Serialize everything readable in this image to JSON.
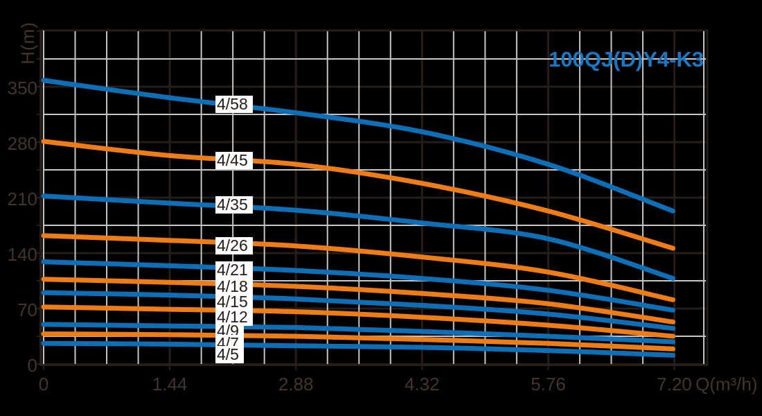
{
  "title": "100QJ(D)Y4-K3",
  "axes": {
    "y_label": "H(m)",
    "x_label": "Q(m³/h)",
    "y_ticks": [
      350,
      280,
      210,
      140,
      70,
      0
    ],
    "x_ticks": [
      "0",
      "1.44",
      "2.88",
      "4.32",
      "5.76",
      "7.20"
    ]
  },
  "colors": {
    "background": "#000000",
    "blue": "#0e6fb7",
    "orange": "#ee7d17",
    "title_blue": "#1b77c0",
    "grid_minor": "#c4c6c5",
    "grid_major": "#281e19",
    "axis_ink": "#43352c",
    "chip_bg": "#ffffff",
    "chip_text": "#241a16"
  },
  "chart_data": {
    "type": "line",
    "title": "100QJ(D)Y4-K3",
    "xlabel": "Q(m³/h)",
    "ylabel": "H(m)",
    "x": [
      0,
      1.44,
      2.88,
      4.32,
      5.76,
      7.2
    ],
    "xlim": [
      0,
      7.56
    ],
    "ylim": [
      0,
      420
    ],
    "grid": {
      "x_major_step": 1.44,
      "x_minor_step": 0.36,
      "y_major_step": 70,
      "y_minor_step": 35,
      "grid_on": true
    },
    "legend_position": "inline-labels-on-curves",
    "series": [
      {
        "name": "4/58",
        "color": "blue",
        "values": [
          358,
          336,
          317,
          293,
          252,
          193
        ]
      },
      {
        "name": "4/45",
        "color": "orange",
        "values": [
          281,
          263,
          252,
          228,
          193,
          146
        ]
      },
      {
        "name": "4/35",
        "color": "blue",
        "values": [
          212,
          203,
          194,
          178,
          158,
          108
        ]
      },
      {
        "name": "4/26",
        "color": "orange",
        "values": [
          162,
          156,
          149,
          135,
          116,
          81
        ]
      },
      {
        "name": "4/21",
        "color": "blue",
        "values": [
          129,
          124,
          118,
          108,
          93,
          68
        ]
      },
      {
        "name": "4/18",
        "color": "orange",
        "values": [
          107,
          103,
          98,
          89,
          76,
          53
        ]
      },
      {
        "name": "4/15",
        "color": "blue",
        "values": [
          90,
          87,
          82,
          74,
          63,
          45
        ]
      },
      {
        "name": "4/12",
        "color": "orange",
        "values": [
          72,
          69,
          66,
          59,
          49,
          35
        ]
      },
      {
        "name": "4/9",
        "color": "blue",
        "values": [
          50,
          48,
          46,
          41,
          35,
          28
        ]
      },
      {
        "name": "4/7",
        "color": "orange",
        "values": [
          38,
          37,
          35,
          31,
          26,
          19
        ]
      },
      {
        "name": "4/5",
        "color": "blue",
        "values": [
          26,
          25,
          23,
          21,
          17,
          11
        ]
      }
    ]
  }
}
